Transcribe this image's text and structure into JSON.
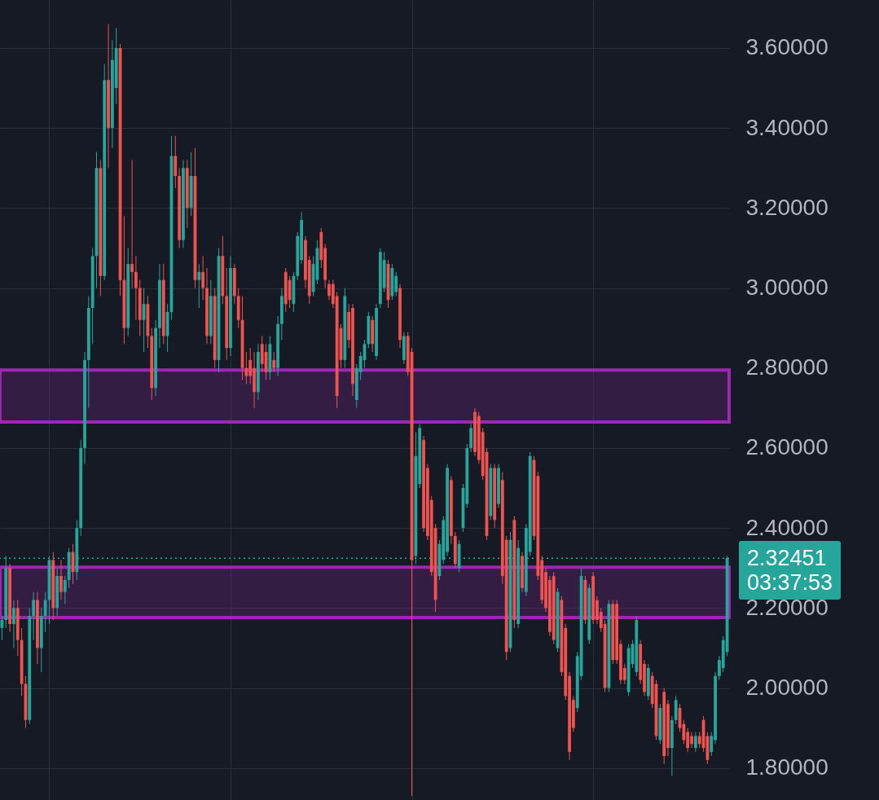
{
  "chart_data": {
    "type": "candlestick",
    "categories": [
      null,
      null,
      null,
      null,
      null,
      null,
      null,
      null,
      null,
      null,
      null,
      null,
      null,
      null,
      null,
      null,
      null,
      null,
      null,
      null,
      null,
      null,
      null,
      null,
      null,
      null,
      null,
      null,
      null,
      null,
      null,
      null,
      null,
      null,
      null,
      null,
      null,
      null,
      null,
      null,
      null,
      null,
      null,
      null,
      null,
      null,
      null,
      null,
      null,
      null,
      null,
      null,
      null,
      null,
      null,
      null,
      null,
      null,
      null,
      null,
      null,
      null,
      null,
      null,
      null,
      null,
      null,
      null,
      null,
      null,
      null,
      null,
      null,
      null,
      null,
      null,
      null,
      null,
      null,
      null,
      null,
      null,
      null,
      null,
      null,
      null,
      null,
      null,
      null,
      null,
      null,
      null,
      null,
      null,
      null,
      null,
      null,
      null,
      null,
      null,
      null,
      null,
      null,
      null,
      null,
      null,
      null,
      null,
      null,
      null,
      null,
      null,
      null,
      null,
      null,
      null,
      null,
      null,
      null,
      null,
      null,
      null,
      null,
      null,
      null,
      null,
      null,
      null,
      null,
      null,
      null,
      null,
      null,
      null,
      null,
      null,
      null,
      null,
      null,
      null,
      null,
      null,
      null,
      null,
      null,
      null,
      null,
      null,
      null,
      null,
      null,
      null,
      null,
      null,
      null,
      null,
      null,
      null,
      null,
      null,
      null,
      null,
      null,
      null,
      null,
      null,
      null,
      null,
      null,
      null,
      null,
      null,
      null,
      null,
      null,
      null,
      null,
      null,
      null,
      null,
      null,
      null,
      null,
      null,
      null
    ],
    "ohlc": [
      [
        2.15,
        2.18,
        2.12,
        2.17
      ],
      [
        2.17,
        2.33,
        2.15,
        2.3
      ],
      [
        2.3,
        2.31,
        2.14,
        2.16
      ],
      [
        2.16,
        2.22,
        2.1,
        2.2
      ],
      [
        2.2,
        2.22,
        2.08,
        2.12
      ],
      [
        2.12,
        2.15,
        1.98,
        2.01
      ],
      [
        2.01,
        2.03,
        1.9,
        1.92
      ],
      [
        1.92,
        2.2,
        1.91,
        2.18
      ],
      [
        2.18,
        2.24,
        2.12,
        2.22
      ],
      [
        2.22,
        2.24,
        2.06,
        2.1
      ],
      [
        2.1,
        2.2,
        2.04,
        2.18
      ],
      [
        2.18,
        2.24,
        2.14,
        2.22
      ],
      [
        2.22,
        2.33,
        2.16,
        2.32
      ],
      [
        2.32,
        2.34,
        2.17,
        2.2
      ],
      [
        2.2,
        2.3,
        2.18,
        2.28
      ],
      [
        2.28,
        2.32,
        2.22,
        2.24
      ],
      [
        2.24,
        2.28,
        2.21,
        2.27
      ],
      [
        2.27,
        2.35,
        2.25,
        2.34
      ],
      [
        2.34,
        2.36,
        2.26,
        2.29
      ],
      [
        2.29,
        2.42,
        2.27,
        2.4
      ],
      [
        2.4,
        2.62,
        2.38,
        2.6
      ],
      [
        2.6,
        2.84,
        2.56,
        2.82
      ],
      [
        2.82,
        2.98,
        2.7,
        2.95
      ],
      [
        2.95,
        3.1,
        2.86,
        3.08
      ],
      [
        3.08,
        3.34,
        3.0,
        3.3
      ],
      [
        3.3,
        3.32,
        2.98,
        3.03
      ],
      [
        3.03,
        3.56,
        3.02,
        3.52
      ],
      [
        3.52,
        3.66,
        3.3,
        3.4
      ],
      [
        3.4,
        3.62,
        3.35,
        3.57
      ],
      [
        3.5,
        3.65,
        3.46,
        3.6
      ],
      [
        3.6,
        3.61,
        2.98,
        3.02
      ],
      [
        3.02,
        3.18,
        2.86,
        2.9
      ],
      [
        2.9,
        3.1,
        2.88,
        3.06
      ],
      [
        3.06,
        3.32,
        3.0,
        3.04
      ],
      [
        3.04,
        3.08,
        2.92,
        3.0
      ],
      [
        3.0,
        3.02,
        2.88,
        2.92
      ],
      [
        2.92,
        3.0,
        2.84,
        2.96
      ],
      [
        2.96,
        2.98,
        2.85,
        2.88
      ],
      [
        2.88,
        2.9,
        2.72,
        2.75
      ],
      [
        2.75,
        2.92,
        2.73,
        2.9
      ],
      [
        2.9,
        3.06,
        2.85,
        3.02
      ],
      [
        3.02,
        3.06,
        2.86,
        2.88
      ],
      [
        2.88,
        2.96,
        2.84,
        2.94
      ],
      [
        2.94,
        3.38,
        2.92,
        3.33
      ],
      [
        3.33,
        3.38,
        3.25,
        3.28
      ],
      [
        3.28,
        3.3,
        3.1,
        3.12
      ],
      [
        3.12,
        3.32,
        3.1,
        3.3
      ],
      [
        3.3,
        3.32,
        3.15,
        3.2
      ],
      [
        3.2,
        3.34,
        3.18,
        3.28
      ],
      [
        3.28,
        3.35,
        3.0,
        3.02
      ],
      [
        3.02,
        3.06,
        2.95,
        3.04
      ],
      [
        3.04,
        3.08,
        2.97,
        3.0
      ],
      [
        3.0,
        3.05,
        2.86,
        2.88
      ],
      [
        2.88,
        3.02,
        2.86,
        2.98
      ],
      [
        2.98,
        3.0,
        2.8,
        2.82
      ],
      [
        2.82,
        3.1,
        2.79,
        3.08
      ],
      [
        3.08,
        3.13,
        2.96,
        2.98
      ],
      [
        2.98,
        3.05,
        2.82,
        2.85
      ],
      [
        2.85,
        3.08,
        2.83,
        3.05
      ],
      [
        3.05,
        3.06,
        2.96,
        2.98
      ],
      [
        2.98,
        3.0,
        2.9,
        2.92
      ],
      [
        2.92,
        2.98,
        2.77,
        2.8
      ],
      [
        2.8,
        2.84,
        2.76,
        2.78
      ],
      [
        2.82,
        2.85,
        2.76,
        2.78
      ],
      [
        2.8,
        2.84,
        2.7,
        2.74
      ],
      [
        2.74,
        2.86,
        2.72,
        2.84
      ],
      [
        2.86,
        2.88,
        2.79,
        2.81
      ],
      [
        2.84,
        2.86,
        2.77,
        2.79
      ],
      [
        2.79,
        2.88,
        2.77,
        2.86
      ],
      [
        2.82,
        2.84,
        2.79,
        2.8
      ],
      [
        2.8,
        2.93,
        2.78,
        2.91
      ],
      [
        2.91,
        3.0,
        2.87,
        2.98
      ],
      [
        3.04,
        3.05,
        2.94,
        2.96
      ],
      [
        3.02,
        3.03,
        2.95,
        2.97
      ],
      [
        2.96,
        3.04,
        2.94,
        3.03
      ],
      [
        3.03,
        3.14,
        3.02,
        3.13
      ],
      [
        3.07,
        3.19,
        3.06,
        3.17
      ],
      [
        3.12,
        3.13,
        3.0,
        3.02
      ],
      [
        3.07,
        3.08,
        2.96,
        2.98
      ],
      [
        2.99,
        3.08,
        2.98,
        3.06
      ],
      [
        3.02,
        3.12,
        3.01,
        3.1
      ],
      [
        3.14,
        3.15,
        3.05,
        3.07
      ],
      [
        3.1,
        3.11,
        3.0,
        3.02
      ],
      [
        3.01,
        3.02,
        2.97,
        2.98
      ],
      [
        3.01,
        3.02,
        2.95,
        2.96
      ],
      [
        2.98,
        2.99,
        2.7,
        2.73
      ],
      [
        2.9,
        2.91,
        2.8,
        2.82
      ],
      [
        2.82,
        3.0,
        2.8,
        2.98
      ],
      [
        2.94,
        2.96,
        2.85,
        2.87
      ],
      [
        2.95,
        2.96,
        2.73,
        2.76
      ],
      [
        2.72,
        2.81,
        2.7,
        2.8
      ],
      [
        2.79,
        2.84,
        2.77,
        2.83
      ],
      [
        2.82,
        2.87,
        2.8,
        2.86
      ],
      [
        2.86,
        2.94,
        2.85,
        2.93
      ],
      [
        2.92,
        2.93,
        2.84,
        2.86
      ],
      [
        2.83,
        2.96,
        2.82,
        2.95
      ],
      [
        2.96,
        3.1,
        2.95,
        3.09
      ],
      [
        3.0,
        3.09,
        2.99,
        3.07
      ],
      [
        3.06,
        3.07,
        2.95,
        2.97
      ],
      [
        2.98,
        3.06,
        2.97,
        3.05
      ],
      [
        2.99,
        3.04,
        2.98,
        3.03
      ],
      [
        3.0,
        3.01,
        2.85,
        2.87
      ],
      [
        2.82,
        2.89,
        2.81,
        2.88
      ],
      [
        2.88,
        2.89,
        2.78,
        2.79
      ],
      [
        2.84,
        2.85,
        1.73,
        2.32
      ],
      [
        2.33,
        2.64,
        2.31,
        2.58
      ],
      [
        2.51,
        2.66,
        2.5,
        2.65
      ],
      [
        2.62,
        2.63,
        2.39,
        2.4
      ],
      [
        2.55,
        2.56,
        2.37,
        2.38
      ],
      [
        2.47,
        2.48,
        2.28,
        2.29
      ],
      [
        2.4,
        2.41,
        2.19,
        2.22
      ],
      [
        2.28,
        2.37,
        2.27,
        2.36
      ],
      [
        2.32,
        2.43,
        2.31,
        2.42
      ],
      [
        2.34,
        2.56,
        2.33,
        2.55
      ],
      [
        2.52,
        2.53,
        2.36,
        2.38
      ],
      [
        2.38,
        2.39,
        2.3,
        2.31
      ],
      [
        2.3,
        2.37,
        2.29,
        2.36
      ],
      [
        2.4,
        2.51,
        2.39,
        2.5
      ],
      [
        2.46,
        2.61,
        2.45,
        2.6
      ],
      [
        2.6,
        2.66,
        2.59,
        2.65
      ],
      [
        2.69,
        2.7,
        2.58,
        2.59
      ],
      [
        2.68,
        2.69,
        2.56,
        2.57
      ],
      [
        2.64,
        2.65,
        2.52,
        2.53
      ],
      [
        2.59,
        2.6,
        2.37,
        2.38
      ],
      [
        2.43,
        2.56,
        2.42,
        2.55
      ],
      [
        2.55,
        2.56,
        2.4,
        2.42
      ],
      [
        2.46,
        2.56,
        2.45,
        2.55
      ],
      [
        2.52,
        2.54,
        2.26,
        2.28
      ],
      [
        2.37,
        2.38,
        2.07,
        2.09
      ],
      [
        2.1,
        2.39,
        2.09,
        2.37
      ],
      [
        2.42,
        2.43,
        2.15,
        2.17
      ],
      [
        2.16,
        2.37,
        2.15,
        2.35
      ],
      [
        2.33,
        2.34,
        2.24,
        2.25
      ],
      [
        2.24,
        2.41,
        2.23,
        2.4
      ],
      [
        2.34,
        2.59,
        2.33,
        2.58
      ],
      [
        2.57,
        2.58,
        2.37,
        2.38
      ],
      [
        2.53,
        2.54,
        2.27,
        2.28
      ],
      [
        2.32,
        2.33,
        2.21,
        2.22
      ],
      [
        2.29,
        2.3,
        2.19,
        2.2
      ],
      [
        2.27,
        2.28,
        2.13,
        2.14
      ],
      [
        2.28,
        2.29,
        2.11,
        2.12
      ],
      [
        2.1,
        2.25,
        2.09,
        2.24
      ],
      [
        2.22,
        2.23,
        2.03,
        2.04
      ],
      [
        2.15,
        2.16,
        1.97,
        1.98
      ],
      [
        2.03,
        2.04,
        1.82,
        1.84
      ],
      [
        1.97,
        1.98,
        1.89,
        1.9
      ],
      [
        1.95,
        2.09,
        1.94,
        2.08
      ],
      [
        2.03,
        2.3,
        2.02,
        2.28
      ],
      [
        2.27,
        2.28,
        2.16,
        2.17
      ],
      [
        2.12,
        2.26,
        2.11,
        2.25
      ],
      [
        2.28,
        2.29,
        2.16,
        2.17
      ],
      [
        2.22,
        2.23,
        2.16,
        2.17
      ],
      [
        2.19,
        2.2,
        2.14,
        2.15
      ],
      [
        2.16,
        2.17,
        1.99,
        2.0
      ],
      [
        2.0,
        2.22,
        1.99,
        2.21
      ],
      [
        2.21,
        2.22,
        2.06,
        2.07
      ],
      [
        2.21,
        2.22,
        2.06,
        2.07
      ],
      [
        2.11,
        2.12,
        2.01,
        2.02
      ],
      [
        2.05,
        2.06,
        2.01,
        2.02
      ],
      [
        1.99,
        2.11,
        1.98,
        2.1
      ],
      [
        2.06,
        2.12,
        2.05,
        2.11
      ],
      [
        2.04,
        2.18,
        2.03,
        2.17
      ],
      [
        2.11,
        2.12,
        2.01,
        2.02
      ],
      [
        2.06,
        2.07,
        1.98,
        1.99
      ],
      [
        1.98,
        2.06,
        1.97,
        2.05
      ],
      [
        2.03,
        2.04,
        1.95,
        1.96
      ],
      [
        2.01,
        2.02,
        1.87,
        1.88
      ],
      [
        1.87,
        1.96,
        1.86,
        1.95
      ],
      [
        1.99,
        2.0,
        1.81,
        1.83
      ],
      [
        1.96,
        1.97,
        1.83,
        1.85
      ],
      [
        1.85,
        1.93,
        1.78,
        1.92
      ],
      [
        1.92,
        1.98,
        1.91,
        1.97
      ],
      [
        1.95,
        1.96,
        1.89,
        1.9
      ],
      [
        1.91,
        1.92,
        1.86,
        1.87
      ],
      [
        1.89,
        1.9,
        1.84,
        1.85
      ],
      [
        1.88,
        1.89,
        1.85,
        1.86
      ],
      [
        1.85,
        1.89,
        1.84,
        1.88
      ],
      [
        1.88,
        1.89,
        1.85,
        1.86
      ],
      [
        1.92,
        1.93,
        1.84,
        1.85
      ],
      [
        1.88,
        1.89,
        1.81,
        1.82
      ],
      [
        1.84,
        1.89,
        1.83,
        1.88
      ],
      [
        1.87,
        2.04,
        1.86,
        2.03
      ],
      [
        2.03,
        2.08,
        2.02,
        2.07
      ],
      [
        2.05,
        2.13,
        2.04,
        2.12
      ],
      [
        2.09,
        2.33,
        2.08,
        2.32451
      ]
    ],
    "ylim": [
      1.72,
      3.72
    ],
    "yticks": [
      {
        "value": 1.8,
        "label": "1.80000"
      },
      {
        "value": 2.0,
        "label": "2.00000"
      },
      {
        "value": 2.2,
        "label": "2.20000"
      },
      {
        "value": 2.4,
        "label": "2.40000"
      },
      {
        "value": 2.6,
        "label": "2.60000"
      },
      {
        "value": 2.8,
        "label": "2.80000"
      },
      {
        "value": 3.0,
        "label": "3.00000"
      },
      {
        "value": 3.2,
        "label": "3.20000"
      },
      {
        "value": 3.4,
        "label": "3.40000"
      },
      {
        "value": 3.6,
        "label": "3.60000"
      }
    ],
    "grid": true,
    "tick_labels": "y",
    "ref_lines": [
      {
        "axis": "y",
        "value": 2.32451,
        "label": "2.32451",
        "color": "#26a69a",
        "line_style": "dotted"
      }
    ],
    "bands": [
      {
        "axis": "y",
        "from": 2.665,
        "to": 2.795,
        "color": "#9c27b0"
      },
      {
        "axis": "y",
        "from": 2.176,
        "to": 2.302,
        "color": "#9c27b0"
      }
    ],
    "annotations": [
      "03:37:53"
    ]
  }
}
